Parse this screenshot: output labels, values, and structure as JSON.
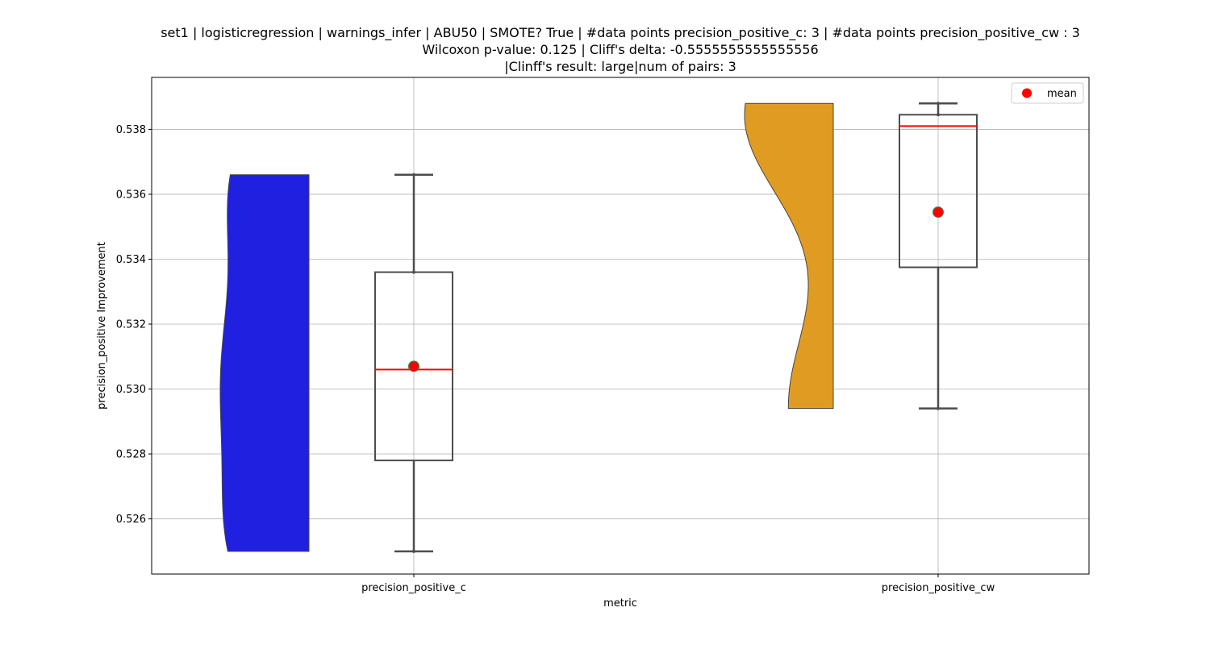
{
  "chart_data": {
    "type": "violin+box",
    "title_lines": [
      "set1 | logisticregression | warnings_infer | ABU50 | SMOTE? True | #data points precision_positive_c: 3 | #data points precision_positive_cw : 3",
      "Wilcoxon p-value: 0.125 | Cliff's delta: -0.5555555555555556",
      "|Clinff's result: large|num of pairs: 3"
    ],
    "xlabel": "metric",
    "ylabel": "precision_positive Improvement",
    "categories": [
      "precision_positive_c",
      "precision_positive_cw"
    ],
    "ylim": [
      0.5243,
      0.5396
    ],
    "yticks": [
      0.526,
      0.528,
      0.53,
      0.532,
      0.534,
      0.536,
      0.538
    ],
    "ytick_labels": [
      "0.526",
      "0.528",
      "0.530",
      "0.532",
      "0.534",
      "0.536",
      "0.538"
    ],
    "grid": true,
    "legend": {
      "position": "top-right",
      "entries": [
        {
          "label": "mean",
          "color": "#ff0000"
        }
      ]
    },
    "series": [
      {
        "category": "precision_positive_c",
        "violin_color": "#2020e0",
        "points": [
          0.525,
          0.5306,
          0.5366
        ],
        "box": {
          "whisker_low": 0.525,
          "q1": 0.5278,
          "median": 0.5306,
          "q3": 0.5336,
          "whisker_high": 0.5366
        },
        "mean": 0.5307
      },
      {
        "category": "precision_positive_cw",
        "violin_color": "#e09c22",
        "points": [
          0.5294,
          0.5381,
          0.5388
        ],
        "box": {
          "whisker_low": 0.5294,
          "q1": 0.53375,
          "median": 0.5381,
          "q3": 0.53845,
          "whisker_high": 0.5388
        },
        "mean": 0.53545
      }
    ],
    "colors": {
      "median_line": "#ff0000",
      "mean_marker": "#ff0000",
      "mean_edge": "#2e8b57",
      "box_edge": "#4d4d4d"
    }
  }
}
